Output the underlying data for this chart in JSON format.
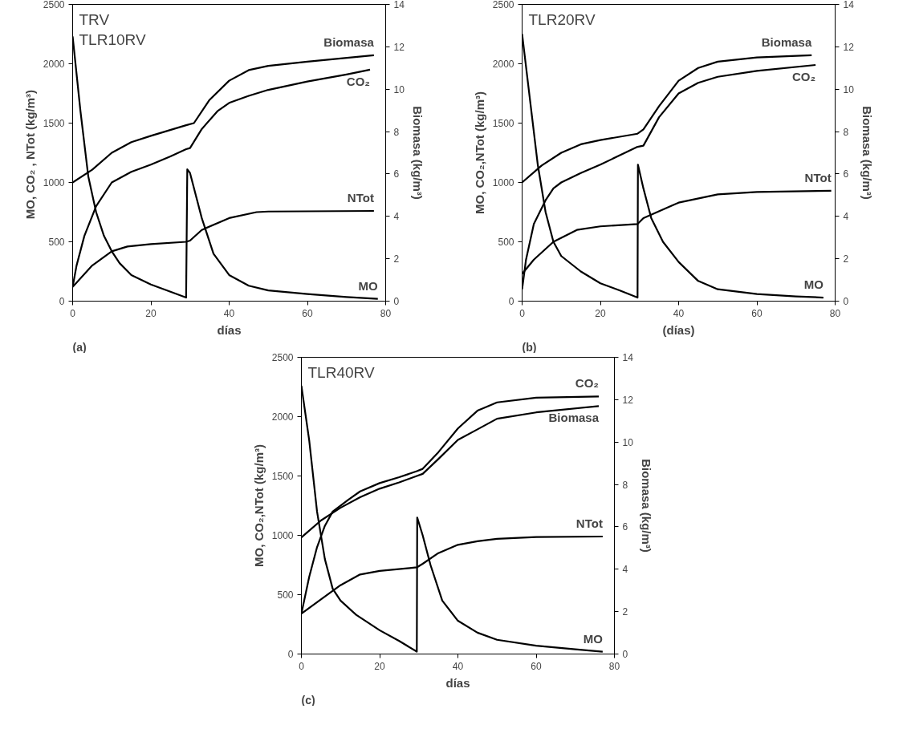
{
  "chart_data": [
    {
      "type": "line",
      "title": "TRV\nTLR10RV",
      "xlabel": "días",
      "ylabel": "MO, CO₂ , NTot  (kg/m³)",
      "y2label": "Biomasa (kg/m³)",
      "annotations": [
        "(a)"
      ],
      "xlim": [
        0,
        80
      ],
      "xticks": [
        0,
        20,
        40,
        60,
        80
      ],
      "ylim": [
        0,
        2500
      ],
      "yticks": [
        0,
        500,
        1000,
        1500,
        2000,
        2500
      ],
      "y2lim": [
        0,
        14
      ],
      "y2ticks": [
        0,
        2,
        4,
        6,
        8,
        10,
        12,
        14
      ],
      "grid": false,
      "line_style": "solid",
      "series": [
        {
          "name": "Biomasa",
          "color": "#000000",
          "axis": "y2",
          "x": [
            0,
            5,
            10,
            15,
            20,
            29,
            31,
            35,
            40,
            45,
            50,
            60,
            77
          ],
          "values": [
            5.6,
            6.2,
            7.0,
            7.5,
            7.8,
            8.3,
            8.4,
            9.5,
            10.4,
            10.9,
            11.1,
            11.3,
            11.6
          ]
        },
        {
          "name": "CO₂",
          "color": "#000000",
          "x": [
            0,
            1,
            3,
            6,
            10,
            15,
            20,
            25,
            29,
            30,
            33,
            37,
            40,
            45,
            50,
            60,
            70,
            76
          ],
          "values": [
            120,
            300,
            550,
            800,
            1000,
            1090,
            1150,
            1220,
            1280,
            1290,
            1450,
            1600,
            1670,
            1730,
            1780,
            1850,
            1910,
            1950
          ]
        },
        {
          "name": "NTot",
          "color": "#000000",
          "x": [
            0,
            5,
            10,
            14,
            20,
            29,
            30,
            33,
            40,
            47,
            50,
            77
          ],
          "values": [
            120,
            300,
            420,
            460,
            480,
            500,
            510,
            600,
            700,
            750,
            755,
            760
          ]
        },
        {
          "name": "MO",
          "color": "#000000",
          "x": [
            0,
            2,
            4,
            6,
            8,
            10,
            12,
            15,
            20,
            25,
            29,
            29.3,
            30,
            33,
            36,
            40,
            45,
            50,
            60,
            70,
            78
          ],
          "values": [
            2230,
            1600,
            1050,
            750,
            550,
            420,
            320,
            220,
            140,
            80,
            30,
            1110,
            1080,
            700,
            400,
            220,
            130,
            90,
            60,
            35,
            20
          ]
        }
      ]
    },
    {
      "type": "line",
      "title": "TLR20RV",
      "xlabel": "(días)",
      "ylabel": "MO, CO₂,NTot (kg/m³)",
      "y2label": "Biomasa (kg/m³)",
      "annotations": [
        "(b)"
      ],
      "xlim": [
        0,
        80
      ],
      "xticks": [
        0,
        20,
        40,
        60,
        80
      ],
      "ylim": [
        0,
        2500
      ],
      "yticks": [
        0,
        500,
        1000,
        1500,
        2000,
        2500
      ],
      "y2lim": [
        0,
        14
      ],
      "y2ticks": [
        0,
        2,
        4,
        6,
        8,
        10,
        12,
        14
      ],
      "grid": false,
      "line_style": "solid",
      "series": [
        {
          "name": "Biomasa",
          "color": "#000000",
          "axis": "y2",
          "x": [
            0,
            5,
            10,
            15,
            20,
            29.5,
            31,
            35,
            40,
            45,
            50,
            60,
            74
          ],
          "values": [
            5.6,
            6.4,
            7.0,
            7.4,
            7.6,
            7.9,
            8.1,
            9.2,
            10.4,
            11.0,
            11.3,
            11.5,
            11.6
          ]
        },
        {
          "name": "CO₂",
          "color": "#000000",
          "x": [
            0,
            1,
            3,
            6,
            8,
            10,
            15,
            20,
            29.5,
            31,
            35,
            40,
            45,
            50,
            60,
            75
          ],
          "values": [
            100,
            350,
            650,
            850,
            950,
            1000,
            1080,
            1150,
            1300,
            1310,
            1550,
            1750,
            1840,
            1890,
            1940,
            1990
          ]
        },
        {
          "name": "NTot",
          "color": "#000000",
          "x": [
            0,
            3,
            8,
            14,
            20,
            29.5,
            31,
            40,
            50,
            60,
            79
          ],
          "values": [
            230,
            350,
            500,
            600,
            630,
            650,
            700,
            830,
            900,
            920,
            930
          ]
        },
        {
          "name": "MO",
          "color": "#000000",
          "x": [
            0,
            2,
            4,
            6,
            8,
            10,
            15,
            20,
            25,
            29.5,
            29.6,
            31,
            33,
            36,
            40,
            45,
            50,
            60,
            70,
            77
          ],
          "values": [
            2250,
            1700,
            1150,
            750,
            500,
            380,
            250,
            150,
            90,
            30,
            1150,
            950,
            700,
            500,
            330,
            170,
            100,
            60,
            40,
            30
          ]
        }
      ]
    },
    {
      "type": "line",
      "title": "TLR40RV",
      "xlabel": "días",
      "ylabel": "MO, CO₂,NTot (kg/m³)",
      "y2label": "Biomasa (kg/m³)",
      "annotations": [
        "(c)"
      ],
      "xlim": [
        0,
        80
      ],
      "xticks": [
        0,
        20,
        40,
        60,
        80
      ],
      "ylim": [
        0,
        2500
      ],
      "yticks": [
        0,
        500,
        1000,
        1500,
        2000,
        2500
      ],
      "y2lim": [
        0,
        14
      ],
      "y2ticks": [
        0,
        2,
        4,
        6,
        8,
        10,
        12,
        14
      ],
      "grid": false,
      "line_style": "solid",
      "series": [
        {
          "name": "CO₂",
          "color": "#000000",
          "x": [
            0,
            2,
            4,
            6,
            8,
            12,
            15,
            20,
            25,
            29.5,
            31,
            35,
            40,
            45,
            50,
            60,
            76
          ],
          "values": [
            340,
            650,
            900,
            1080,
            1200,
            1300,
            1370,
            1440,
            1490,
            1540,
            1560,
            1700,
            1900,
            2050,
            2120,
            2160,
            2170
          ]
        },
        {
          "name": "Biomasa",
          "color": "#000000",
          "axis": "y2",
          "x": [
            0,
            5,
            10,
            15,
            20,
            25,
            29.5,
            31,
            35,
            40,
            45,
            50,
            60,
            76
          ],
          "values": [
            5.5,
            6.3,
            6.9,
            7.4,
            7.8,
            8.1,
            8.4,
            8.5,
            9.2,
            10.1,
            10.6,
            11.1,
            11.4,
            11.7
          ]
        },
        {
          "name": "NTot",
          "color": "#000000",
          "x": [
            0,
            5,
            10,
            15,
            20,
            29.5,
            31,
            35,
            40,
            45,
            50,
            60,
            77
          ],
          "values": [
            340,
            460,
            580,
            670,
            700,
            730,
            760,
            850,
            920,
            950,
            970,
            985,
            990
          ]
        },
        {
          "name": "MO",
          "color": "#000000",
          "x": [
            0,
            2,
            4,
            6,
            8,
            10,
            14,
            20,
            25,
            29.5,
            29.6,
            31,
            33,
            36,
            40,
            45,
            50,
            60,
            70,
            77
          ],
          "values": [
            2260,
            1800,
            1200,
            800,
            550,
            450,
            330,
            200,
            110,
            20,
            1150,
            1000,
            750,
            450,
            280,
            180,
            120,
            70,
            40,
            20
          ]
        }
      ]
    }
  ]
}
